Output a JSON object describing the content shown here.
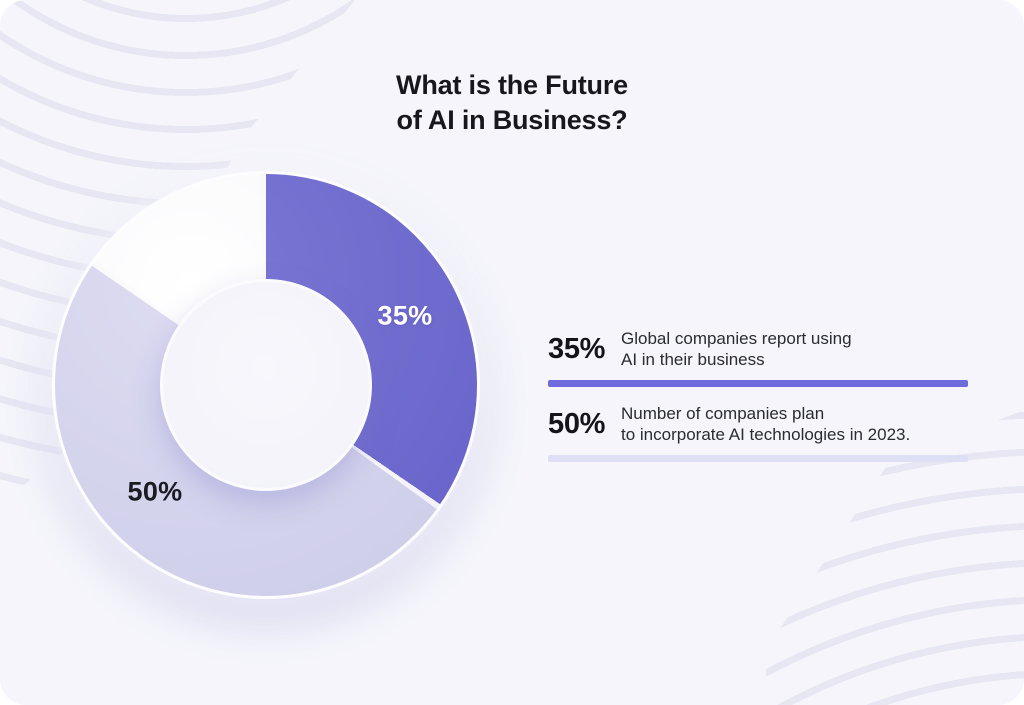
{
  "title": {
    "line1": "What is the Future",
    "line2": "of AI in Business?"
  },
  "chart_data": {
    "type": "pie",
    "donut": true,
    "title": "What is the Future of AI in Business?",
    "start_angle_deg": 0,
    "direction": "clockwise",
    "inner_radius_ratio": 0.5,
    "slices": [
      {
        "data_label": "35%",
        "value_pct": 35,
        "color": "#6D69D0",
        "label_color": "#FFFFFF",
        "description": "Global companies report using AI in their business"
      },
      {
        "data_label": "50%",
        "value_pct": 50,
        "color": "#D9D8F0",
        "label_color": "#1B1B22",
        "description": "Number of companies plan to incorporate AI technologies in 2023."
      },
      {
        "data_label": "",
        "value_pct": 15,
        "color": "#FFFFFF",
        "label_color": "",
        "description": ""
      }
    ],
    "separator_color": "#FDFDFF"
  },
  "legend": {
    "items": [
      {
        "value": "35%",
        "lines": [
          "Global companies report using",
          "AI in their business"
        ],
        "divider_color": "#6F6BDC"
      },
      {
        "value": "50%",
        "lines": [
          "Number of companies plan",
          "to incorporate AI technologies in 2023."
        ],
        "divider_color": "#DEDEF4"
      }
    ]
  },
  "colors": {
    "card_background": "#F5F5FB",
    "stripe_line": "#E7E7F3",
    "accent_purple": "#6D69D0",
    "light_lavender": "#D9D8F0",
    "white_slice": "#FFFFFF",
    "title_text": "#17171D",
    "body_text": "#2B2B33"
  }
}
